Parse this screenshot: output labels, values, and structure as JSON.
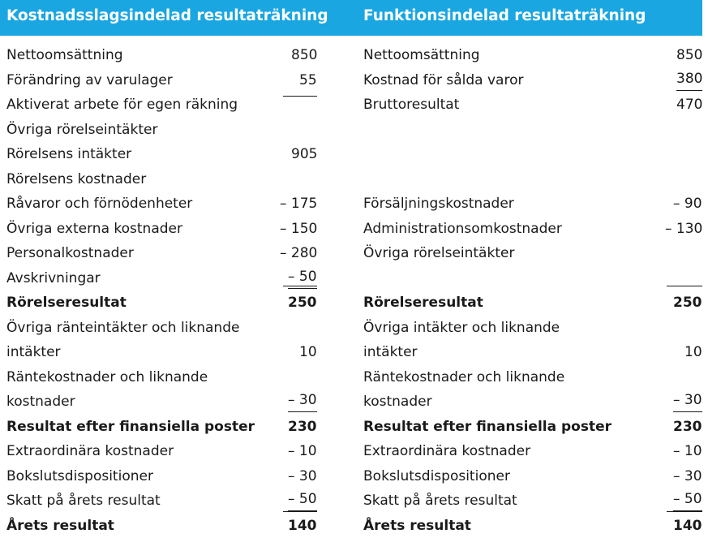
{
  "left": {
    "title": "Kostnadsslagsindelad resultaträkning",
    "rows": [
      {
        "label": "Nettoomsättning",
        "value": "850"
      },
      {
        "label": "Förändring av varulager",
        "value": "55"
      },
      {
        "label": "Aktiverat arbete för egen räkning",
        "value": ""
      },
      {
        "label": "Övriga rörelseintäkter",
        "value": ""
      },
      {
        "label": "Rörelsens intäkter",
        "value": "905"
      },
      {
        "label": "Rörelsens kostnader",
        "value": ""
      },
      {
        "label": "Råvaror och förnödenheter",
        "value": "– 175"
      },
      {
        "label": "Övriga externa kostnader",
        "value": "– 150"
      },
      {
        "label": "Personalkostnader",
        "value": "– 280"
      },
      {
        "label": "Avskrivningar",
        "value": "– 50"
      },
      {
        "label": "Rörelseresultat",
        "value": "250"
      },
      {
        "label": "Övriga ränteintäkter och liknande",
        "value": ""
      },
      {
        "label": "intäkter",
        "value": "10"
      },
      {
        "label": "Räntekostnader och liknande",
        "value": ""
      },
      {
        "label": "kostnader",
        "value": "– 30"
      },
      {
        "label": "Resultat efter finansiella poster",
        "value": "230"
      },
      {
        "label": "Extraordinära kostnader",
        "value": "– 10"
      },
      {
        "label": "Bokslutsdispositioner",
        "value": "– 30"
      },
      {
        "label": "Skatt på årets resultat",
        "value": "– 50"
      },
      {
        "label": "Årets resultat",
        "value": "140"
      }
    ]
  },
  "right": {
    "title": "Funktionsindelad resultaträkning",
    "rows": [
      {
        "label": "Nettoomsättning",
        "value": "850"
      },
      {
        "label": "Kostnad för sålda varor",
        "value": "380"
      },
      {
        "label": "Bruttoresultat",
        "value": "470"
      },
      {
        "label": "",
        "value": ""
      },
      {
        "label": "",
        "value": ""
      },
      {
        "label": "",
        "value": ""
      },
      {
        "label": "Försäljningskostnader",
        "value": "– 90"
      },
      {
        "label": "Administrationsomkostnader",
        "value": "– 130"
      },
      {
        "label": "Övriga rörelseintäkter",
        "value": ""
      },
      {
        "label": "",
        "value": ""
      },
      {
        "label": "Rörelseresultat",
        "value": "250"
      },
      {
        "label": "Övriga intäkter och liknande",
        "value": ""
      },
      {
        "label": "intäkter",
        "value": "10"
      },
      {
        "label": "Räntekostnader och liknande",
        "value": ""
      },
      {
        "label": "kostnader",
        "value": "– 30"
      },
      {
        "label": "Resultat efter finansiella poster",
        "value": "230"
      },
      {
        "label": "Extraordinära kostnader",
        "value": "– 10"
      },
      {
        "label": "Bokslutsdispositioner",
        "value": "– 30"
      },
      {
        "label": "Skatt på årets resultat",
        "value": "– 50"
      },
      {
        "label": "Årets resultat",
        "value": "140"
      }
    ]
  },
  "colors": {
    "header_bg": "#1aa6e0",
    "header_text": "#ffffff",
    "text": "#1a1a1a"
  }
}
